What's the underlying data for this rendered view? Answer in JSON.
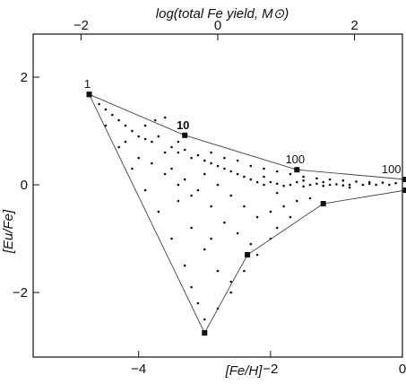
{
  "chart_data": {
    "type": "scatter",
    "xlabel": "[Fe/H]",
    "ylabel": "[Eu/Fe]",
    "top_xlabel": "log(total Fe yield, M⊙)",
    "xlim": [
      -5.6,
      0
    ],
    "ylim": [
      -3.2,
      2.8
    ],
    "top_xlim": [
      -2.7,
      2.7
    ],
    "bottom_ticks": [
      {
        "value": -4,
        "label": "−4"
      },
      {
        "value": -2,
        "label": "−2"
      },
      {
        "value": 0,
        "label": "0"
      }
    ],
    "top_ticks": [
      {
        "value": -2,
        "label": "−2"
      },
      {
        "value": 0,
        "label": "0"
      },
      {
        "value": 2,
        "label": "2"
      }
    ],
    "left_ticks": [
      {
        "value": 2,
        "label": "2"
      },
      {
        "value": 0,
        "label": "0"
      },
      {
        "value": -2,
        "label": "−2"
      }
    ],
    "upper_envelope": [
      {
        "x": -4.75,
        "y": 1.68,
        "label": "1",
        "bold": false
      },
      {
        "x": -3.3,
        "y": 0.92,
        "label": "10",
        "bold": true
      },
      {
        "x": -1.6,
        "y": 0.28,
        "label": "100",
        "bold": false
      },
      {
        "x": 0.05,
        "y": 0.1,
        "label": "100",
        "bold": false
      }
    ],
    "lower_envelope": [
      {
        "x": -4.75,
        "y": 1.68
      },
      {
        "x": -3.0,
        "y": -2.75
      },
      {
        "x": -2.35,
        "y": -1.3
      },
      {
        "x": -1.2,
        "y": -0.35
      },
      {
        "x": 0.05,
        "y": -0.1
      }
    ],
    "series": [
      {
        "points": [
          [
            -4.6,
            1.5
          ],
          [
            -4.5,
            1.4
          ],
          [
            -4.4,
            1.3
          ],
          [
            -4.3,
            1.2
          ],
          [
            -4.2,
            1.1
          ],
          [
            -4.1,
            1.0
          ],
          [
            -4.0,
            0.9
          ],
          [
            -3.9,
            0.85
          ],
          [
            -3.8,
            0.8
          ],
          [
            -3.75,
            1.2
          ],
          [
            -3.6,
            1.25
          ],
          [
            -3.5,
            0.7
          ],
          [
            -3.4,
            0.6
          ],
          [
            -3.3,
            0.65
          ],
          [
            -3.2,
            0.5
          ],
          [
            -3.1,
            0.55
          ],
          [
            -3.0,
            0.45
          ],
          [
            -2.9,
            0.4
          ],
          [
            -2.8,
            0.35
          ],
          [
            -2.7,
            0.3
          ],
          [
            -2.6,
            0.25
          ],
          [
            -2.5,
            0.2
          ],
          [
            -2.4,
            0.15
          ],
          [
            -2.3,
            0.1
          ],
          [
            -2.2,
            0.05
          ],
          [
            -2.1,
            0.0
          ],
          [
            -2.0,
            0.05
          ],
          [
            -1.9,
            0.02
          ],
          [
            -1.8,
            -0.02
          ],
          [
            -1.7,
            0.0
          ],
          [
            -1.6,
            0.05
          ],
          [
            -1.5,
            -0.03
          ],
          [
            -1.4,
            0.0
          ],
          [
            -1.3,
            0.02
          ],
          [
            -1.2,
            -0.02
          ],
          [
            -1.1,
            0.0
          ],
          [
            -1.0,
            0.01
          ],
          [
            -0.9,
            -0.01
          ],
          [
            -0.8,
            0.0
          ],
          [
            -0.6,
            0.0
          ],
          [
            -0.4,
            0.0
          ],
          [
            -0.2,
            0.0
          ],
          [
            -4.5,
            1.1
          ],
          [
            -4.3,
            0.7
          ],
          [
            -4.1,
            0.3
          ],
          [
            -3.9,
            -0.1
          ],
          [
            -3.7,
            -0.5
          ],
          [
            -3.5,
            -1.0
          ],
          [
            -3.3,
            -1.5
          ],
          [
            -3.2,
            -1.9
          ],
          [
            -3.1,
            -2.2
          ],
          [
            -3.0,
            -2.5
          ],
          [
            -3.6,
            0.2
          ],
          [
            -3.4,
            -0.3
          ],
          [
            -3.2,
            -0.8
          ],
          [
            -3.0,
            -1.2
          ],
          [
            -2.8,
            -1.6
          ],
          [
            -2.6,
            -1.8
          ],
          [
            -3.5,
            0.3
          ],
          [
            -3.3,
            0.1
          ],
          [
            -3.1,
            -0.1
          ],
          [
            -2.9,
            -0.4
          ],
          [
            -2.7,
            -0.7
          ],
          [
            -2.5,
            -0.9
          ],
          [
            -2.3,
            -1.1
          ],
          [
            -3.0,
            0.2
          ],
          [
            -2.8,
            0.0
          ],
          [
            -2.6,
            -0.2
          ],
          [
            -2.4,
            -0.4
          ],
          [
            -2.2,
            -0.6
          ],
          [
            -2.0,
            -0.5
          ],
          [
            -1.8,
            -0.4
          ],
          [
            -1.6,
            -0.3
          ],
          [
            -1.4,
            -0.25
          ],
          [
            -2.9,
            0.6
          ],
          [
            -2.7,
            0.5
          ],
          [
            -2.5,
            0.45
          ],
          [
            -2.3,
            0.35
          ],
          [
            -2.1,
            0.3
          ],
          [
            -1.9,
            0.25
          ],
          [
            -1.7,
            0.2
          ],
          [
            -1.5,
            0.15
          ],
          [
            -1.3,
            0.12
          ],
          [
            -1.1,
            0.1
          ],
          [
            -0.9,
            0.08
          ],
          [
            -0.7,
            0.06
          ],
          [
            -0.5,
            0.05
          ],
          [
            -0.3,
            0.04
          ],
          [
            -0.1,
            0.03
          ],
          [
            -3.8,
            0.4
          ],
          [
            -3.6,
            0.6
          ],
          [
            -3.4,
            0.8
          ],
          [
            -4.0,
            0.5
          ],
          [
            -4.2,
            0.8
          ],
          [
            -3.9,
            1.1
          ],
          [
            -3.7,
            0.9
          ],
          [
            -2.0,
            -1.0
          ],
          [
            -1.9,
            -0.8
          ],
          [
            -1.7,
            -0.6
          ],
          [
            -2.2,
            -1.3
          ],
          [
            -2.4,
            -1.6
          ],
          [
            -2.6,
            -2.0
          ],
          [
            -2.8,
            -2.3
          ],
          [
            -2.9,
            -1.0
          ],
          [
            -3.2,
            -0.2
          ],
          [
            -3.4,
            0.0
          ],
          [
            -2.1,
            0.15
          ],
          [
            -1.9,
            -0.15
          ],
          [
            -1.5,
            0.08
          ],
          [
            -1.2,
            0.05
          ],
          [
            -0.8,
            -0.05
          ],
          [
            -0.5,
            0.02
          ]
        ]
      }
    ]
  }
}
